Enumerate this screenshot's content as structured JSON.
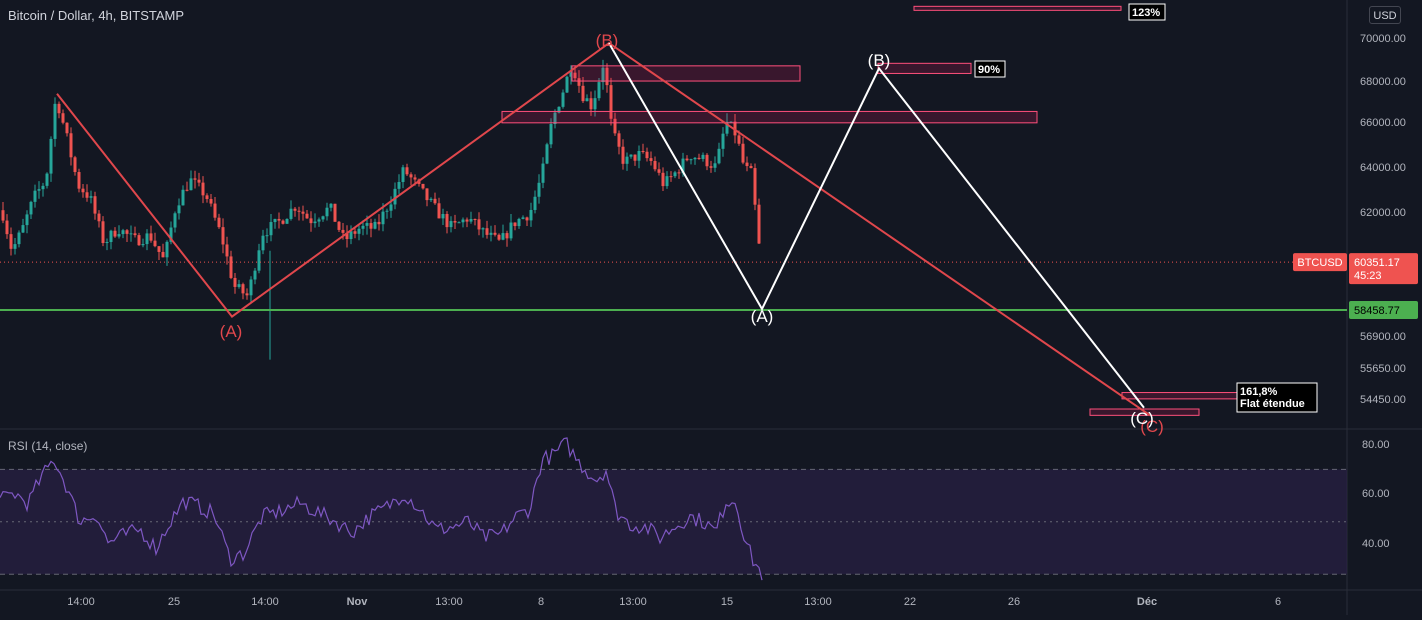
{
  "header": {
    "symbol_title": "Bitcoin / Dollar, 4h, BITSTAMP",
    "currency": "USD"
  },
  "rsi": {
    "title": "RSI (14, close)",
    "ticks": [
      "80.00",
      "60.00",
      "40.00"
    ]
  },
  "price_axis": {
    "ticks": [
      "70000.00",
      "68000.00",
      "66000.00",
      "64000.00",
      "62000.00",
      "56900.00",
      "55650.00",
      "54450.00"
    ]
  },
  "time_axis": {
    "ticks": [
      "14:00",
      "25",
      "14:00",
      "Nov",
      "13:00",
      "8",
      "13:00",
      "15",
      "13:00",
      "22",
      "26",
      "Déc",
      "6"
    ]
  },
  "markers": {
    "symbol_tag": "BTCUSD",
    "last_price": "60351.17",
    "countdown": "45:23",
    "support_price": "58458.77"
  },
  "wave_labels": {
    "red_a": "(A)",
    "red_b": "(B)",
    "red_c": "(C)",
    "white_a": "(A)",
    "white_b": "(B)",
    "white_c": "(C)"
  },
  "fib_labels": {
    "f123": "123%",
    "f90": "90%",
    "f161_line1": "161,8%",
    "f161_line2": "Flat étendue"
  },
  "colors": {
    "background": "#131722",
    "up": "#26a69a",
    "down": "#ef5350",
    "red_wave": "#e0474c",
    "white_wave": "#ffffff",
    "support_line": "#4caf50",
    "rsi_line": "#7e57c2",
    "rsi_band": "#2a2145"
  },
  "chart_data": {
    "type": "candlestick",
    "title": "Bitcoin / Dollar, 4h, BITSTAMP",
    "ylim": [
      53800,
      70700
    ],
    "last_price": 60351.17,
    "support_level": 58458.77,
    "red_wave_path": [
      {
        "label": "",
        "price": 67000
      },
      {
        "label": "(A)",
        "price": 58200
      },
      {
        "label": "(B)",
        "price": 69000
      },
      {
        "label": "(C)",
        "price": 54300
      }
    ],
    "white_wave_path": [
      {
        "label": "",
        "price": 69000
      },
      {
        "label": "(A)",
        "price": 58500
      },
      {
        "label": "(B)",
        "price": 68000
      },
      {
        "label": "(C)",
        "price": 54600
      }
    ],
    "fib_zones": [
      {
        "label": "123%",
        "low": 70300,
        "high": 70450
      },
      {
        "label": "90%",
        "low": 67800,
        "high": 68200
      },
      {
        "label": "",
        "low": 67500,
        "high": 68100
      },
      {
        "label": "",
        "low": 65850,
        "high": 66300
      },
      {
        "label": "161,8% Flat étendue",
        "low": 54950,
        "high": 55200
      },
      {
        "label": "",
        "low": 54300,
        "high": 54550
      }
    ],
    "rsi": {
      "ylim": [
        24,
        85
      ],
      "levels": [
        70,
        50,
        30
      ]
    }
  }
}
